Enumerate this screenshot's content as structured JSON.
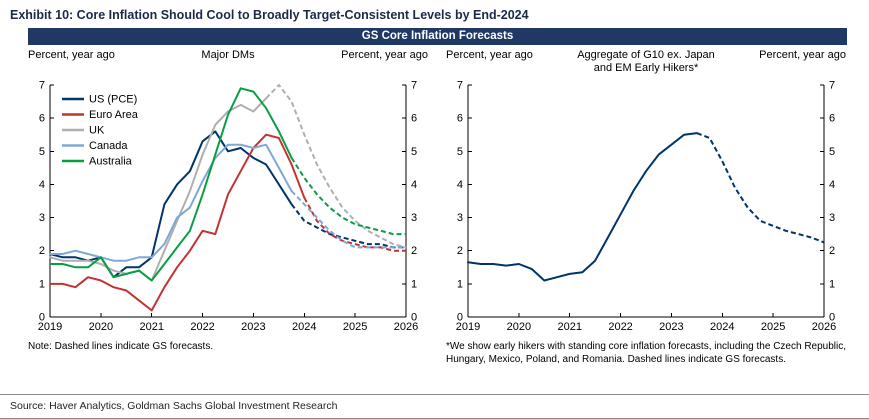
{
  "exhibit": {
    "title": "Exhibit 10: Core Inflation Should Cool to Broadly Target-Consistent Levels by End-2024",
    "banner": "GS Core Inflation Forecasts",
    "source": "Source: Haver Analytics, Goldman Sachs Global Investment Research"
  },
  "colors": {
    "banner_bg": "#1F3864",
    "exhibit_title_text": "#1B2A4A",
    "axis": "#000000"
  },
  "chart_data": [
    {
      "type": "line",
      "title": "Major DMs",
      "ylabel_left": "Percent, year ago",
      "ylabel_right": "Percent, year ago",
      "note": "Note: Dashed lines indicate GS forecasts.",
      "ylim": [
        0,
        7
      ],
      "yticks": [
        0,
        1,
        2,
        3,
        4,
        5,
        6,
        7
      ],
      "xlim": [
        2019,
        2026
      ],
      "xticks": [
        2019,
        2020,
        2021,
        2022,
        2023,
        2024,
        2025,
        2026
      ],
      "x_start": 2019,
      "x_step": 0.25,
      "legend": true,
      "legend_position": "top-left",
      "grid": false,
      "series": [
        {
          "name": "US (PCE)",
          "color": "#00356B",
          "forecast_start": 2023.75,
          "values": [
            1.9,
            1.8,
            1.8,
            1.7,
            1.8,
            1.2,
            1.5,
            1.5,
            1.8,
            3.4,
            4.0,
            4.4,
            5.3,
            5.6,
            5.0,
            5.1,
            4.8,
            4.6,
            4.0,
            3.4,
            2.9,
            2.7,
            2.5,
            2.4,
            2.3,
            2.2,
            2.2,
            2.1,
            2.1
          ]
        },
        {
          "name": "Euro Area",
          "color": "#C13431",
          "forecast_start": 2024.0,
          "values": [
            1.0,
            1.0,
            0.9,
            1.2,
            1.1,
            0.9,
            0.8,
            0.5,
            0.2,
            0.9,
            1.5,
            2.0,
            2.6,
            2.5,
            3.7,
            4.4,
            5.1,
            5.5,
            5.4,
            4.6,
            3.6,
            2.9,
            2.5,
            2.3,
            2.2,
            2.1,
            2.1,
            2.0,
            2.0
          ]
        },
        {
          "name": "UK",
          "color": "#AFAFAF",
          "forecast_start": 2023.25,
          "values": [
            1.8,
            1.7,
            1.7,
            1.7,
            1.6,
            1.4,
            1.3,
            1.4,
            1.1,
            2.0,
            2.9,
            3.8,
            4.9,
            5.8,
            6.2,
            6.4,
            6.2,
            6.6,
            7.0,
            6.5,
            5.5,
            4.6,
            3.9,
            3.3,
            2.9,
            2.6,
            2.4,
            2.2,
            2.1
          ]
        },
        {
          "name": "Canada",
          "color": "#7FA8D6",
          "forecast_start": 2023.75,
          "values": [
            1.9,
            1.9,
            2.0,
            1.9,
            1.8,
            1.7,
            1.7,
            1.8,
            1.8,
            2.2,
            3.0,
            3.3,
            4.1,
            4.8,
            5.2,
            5.2,
            5.1,
            5.2,
            4.5,
            3.8,
            3.4,
            3.0,
            2.6,
            2.3,
            2.1,
            2.1,
            2.1,
            2.1,
            2.1
          ]
        },
        {
          "name": "Australia",
          "color": "#089E46",
          "forecast_start": 2023.75,
          "values": [
            1.6,
            1.6,
            1.5,
            1.5,
            1.8,
            1.2,
            1.3,
            1.4,
            1.1,
            1.6,
            2.1,
            2.6,
            3.7,
            4.9,
            6.1,
            6.9,
            6.8,
            6.3,
            5.6,
            4.8,
            4.2,
            3.7,
            3.3,
            3.0,
            2.8,
            2.7,
            2.6,
            2.5,
            2.5
          ]
        }
      ]
    },
    {
      "type": "line",
      "title": "Aggregate of G10 ex. Japan\nand EM Early Hikers*",
      "ylabel_left": "Percent, year ago",
      "ylabel_right": "Percent, year ago",
      "note": "*We show early hikers with standing core inflation forecasts, including the Czech Republic, Hungary, Mexico, Poland, and Romania. Dashed lines indicate GS forecasts.",
      "ylim": [
        0,
        7
      ],
      "yticks": [
        0,
        1,
        2,
        3,
        4,
        5,
        6,
        7
      ],
      "xlim": [
        2019,
        2026
      ],
      "xticks": [
        2019,
        2020,
        2021,
        2022,
        2023,
        2024,
        2025,
        2026
      ],
      "x_start": 2019,
      "x_step": 0.25,
      "legend": false,
      "grid": false,
      "series": [
        {
          "name": "G10 ex. Japan and EM Early Hikers",
          "color": "#00356B",
          "forecast_start": 2023.5,
          "values": [
            1.65,
            1.6,
            1.6,
            1.55,
            1.6,
            1.45,
            1.1,
            1.2,
            1.3,
            1.35,
            1.7,
            2.4,
            3.1,
            3.8,
            4.4,
            4.9,
            5.2,
            5.5,
            5.55,
            5.4,
            4.7,
            3.9,
            3.3,
            2.9,
            2.75,
            2.6,
            2.5,
            2.4,
            2.25
          ]
        }
      ]
    }
  ]
}
